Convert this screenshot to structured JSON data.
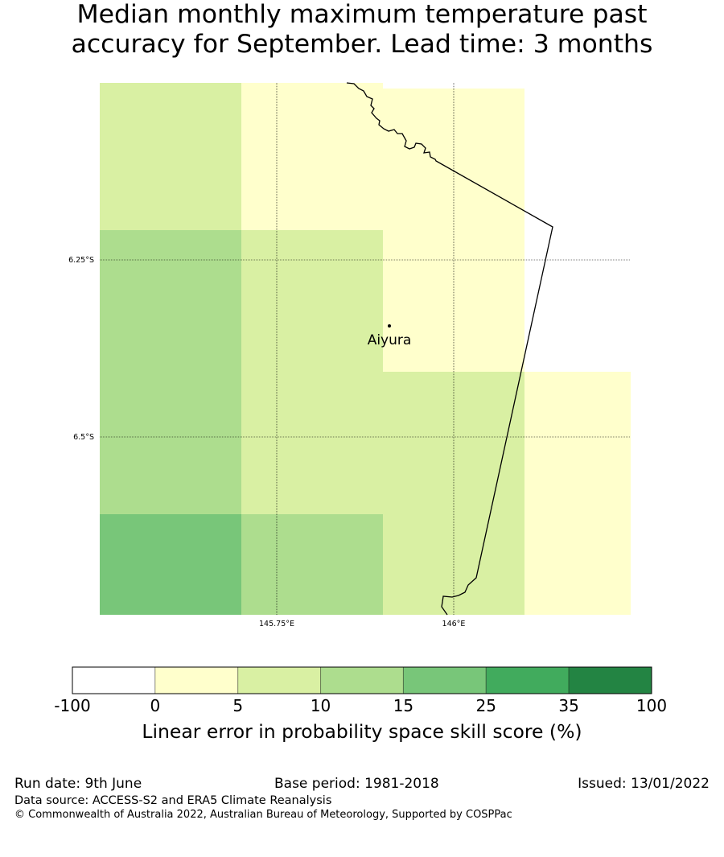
{
  "title": {
    "line1": "Median monthly maximum temperature past",
    "line2": "accuracy for September. Lead time: 3 months"
  },
  "map": {
    "lon_labels": [
      "145.75°E",
      "146°E"
    ],
    "lat_labels": [
      "6.25°S",
      "6.5°S"
    ],
    "location": {
      "name": "Aiyura"
    },
    "grid_cells": [
      {
        "col": 0,
        "row": 0,
        "category": "5-10"
      },
      {
        "col": 1,
        "row": 0,
        "category": "0-5"
      },
      {
        "col": 2,
        "row": 0,
        "category": "0-5"
      },
      {
        "col": 0,
        "row": 1,
        "category": "10-15"
      },
      {
        "col": 1,
        "row": 1,
        "category": "5-10"
      },
      {
        "col": 2,
        "row": 1,
        "category": "0-5"
      },
      {
        "col": 0,
        "row": 2,
        "category": "10-15"
      },
      {
        "col": 1,
        "row": 2,
        "category": "5-10"
      },
      {
        "col": 2,
        "row": 2,
        "category": "5-10"
      },
      {
        "col": 3,
        "row": 2,
        "category": "0-5"
      },
      {
        "col": 0,
        "row": 3,
        "category": "15-25"
      },
      {
        "col": 1,
        "row": 3,
        "category": "10-15"
      },
      {
        "col": 2,
        "row": 3,
        "category": "5-10"
      },
      {
        "col": 3,
        "row": 3,
        "category": "0-5"
      }
    ]
  },
  "colorbar": {
    "ticks": [
      "-100",
      "0",
      "5",
      "10",
      "15",
      "25",
      "35",
      "100"
    ],
    "colors": [
      "#ffffff",
      "#ffffcc",
      "#d9f0a3",
      "#addd8e",
      "#78c679",
      "#41ab5d",
      "#238443"
    ],
    "label": "Linear error in probability space skill score (%)"
  },
  "footer": {
    "run_date": "Run date: 9th June",
    "base_period": "Base period: 1981-2018",
    "issued": "Issued: 13/01/2022",
    "data_source": "Data source: ACCESS-S2 and ERA5 Climate Reanalysis",
    "copyright": "© Commonwealth of Australia 2022, Australian Bureau of Meteorology, Supported by COSPPac"
  }
}
